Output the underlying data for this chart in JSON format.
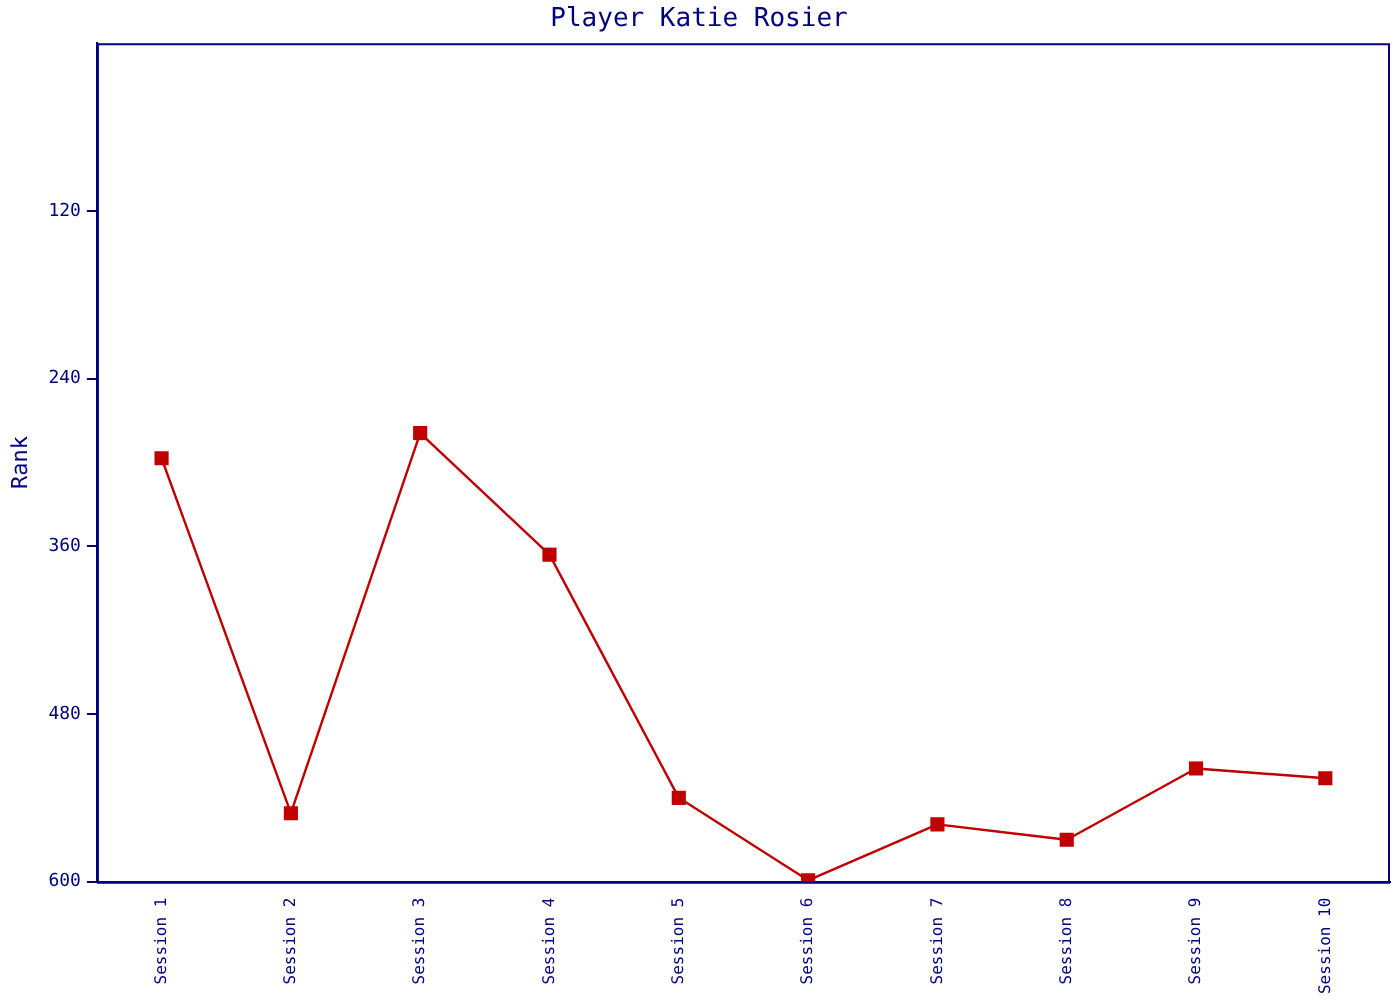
{
  "chart_data": {
    "type": "line",
    "title": "Player Katie Rosier",
    "ylabel": "Rank",
    "categories": [
      "Session 1",
      "Session 2",
      "Session 3",
      "Session 4",
      "Session 5",
      "Session 6",
      "Session 7",
      "Session 8",
      "Session 9",
      "Session 10"
    ],
    "series": [
      {
        "color": "#c00000",
        "values": [
          297,
          551,
          279,
          366,
          540,
          599,
          559,
          570,
          519,
          526
        ]
      }
    ],
    "ylim": [
      600,
      0
    ],
    "yticks": [
      120,
      240,
      360,
      480,
      600
    ],
    "grid": false,
    "legend": false,
    "marker": "square",
    "line_style": "solid"
  }
}
